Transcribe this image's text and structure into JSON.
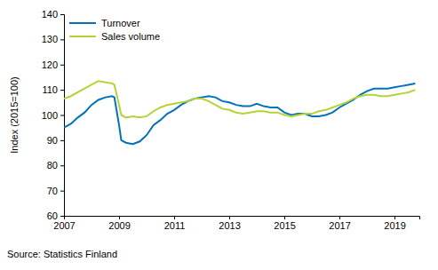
{
  "chart_data": {
    "type": "line",
    "y_label": "Index (2015=100)",
    "source": "Source: Statistics Finland",
    "x": [
      2007,
      2007.25,
      2007.5,
      2007.75,
      2008,
      2008.25,
      2008.5,
      2008.75,
      2008.83,
      2009,
      2009.08,
      2009.25,
      2009.5,
      2009.75,
      2010,
      2010.25,
      2010.5,
      2010.75,
      2011,
      2011.25,
      2011.5,
      2011.75,
      2012,
      2012.25,
      2012.5,
      2012.75,
      2013,
      2013.25,
      2013.5,
      2013.75,
      2014,
      2014.25,
      2014.5,
      2014.75,
      2015,
      2015.25,
      2015.5,
      2015.75,
      2016,
      2016.25,
      2016.5,
      2016.75,
      2017,
      2017.25,
      2017.5,
      2017.75,
      2018,
      2018.25,
      2018.5,
      2018.75,
      2019,
      2019.25,
      2019.5,
      2019.75
    ],
    "series": [
      {
        "name": "Turnover",
        "color": "#0072b9",
        "values": [
          95,
          96.5,
          99,
          101,
          104,
          106,
          107,
          107.5,
          107,
          96,
          90,
          89,
          88.5,
          89.5,
          92,
          96,
          98,
          100.5,
          102,
          104,
          105.5,
          106.5,
          107,
          107.5,
          107,
          105.5,
          105,
          104,
          103.5,
          103.5,
          104.5,
          103.5,
          103,
          103,
          101,
          100,
          100.5,
          100.5,
          99.5,
          99.5,
          100,
          101,
          103,
          104.5,
          106,
          108,
          109.5,
          110.5,
          110.5,
          110.5,
          111,
          111.5,
          112,
          112.5
        ]
      },
      {
        "name": "Sales volume",
        "color": "#b5d334",
        "values": [
          106.5,
          107.5,
          109,
          110.5,
          112,
          113.5,
          113,
          112.5,
          112,
          104,
          100,
          99,
          99.5,
          99,
          99.5,
          101.5,
          103,
          104,
          104.5,
          105,
          105.5,
          106.5,
          106.5,
          105.5,
          104,
          102.5,
          102,
          101,
          100.5,
          101,
          101.5,
          101.5,
          101,
          101,
          100,
          99.5,
          100,
          100.5,
          100.5,
          101.5,
          102,
          103,
          104,
          105,
          106.5,
          107.5,
          108,
          108,
          107.5,
          107.5,
          108,
          108.5,
          109,
          110
        ]
      }
    ],
    "xlim": [
      2007,
      2019.9
    ],
    "xticks": [
      2007,
      2009,
      2011,
      2013,
      2015,
      2017,
      2019
    ],
    "ylim": [
      60,
      140
    ],
    "yticks": [
      60,
      70,
      80,
      90,
      100,
      110,
      120,
      130,
      140
    ],
    "grid": false,
    "legend": "upper left"
  }
}
